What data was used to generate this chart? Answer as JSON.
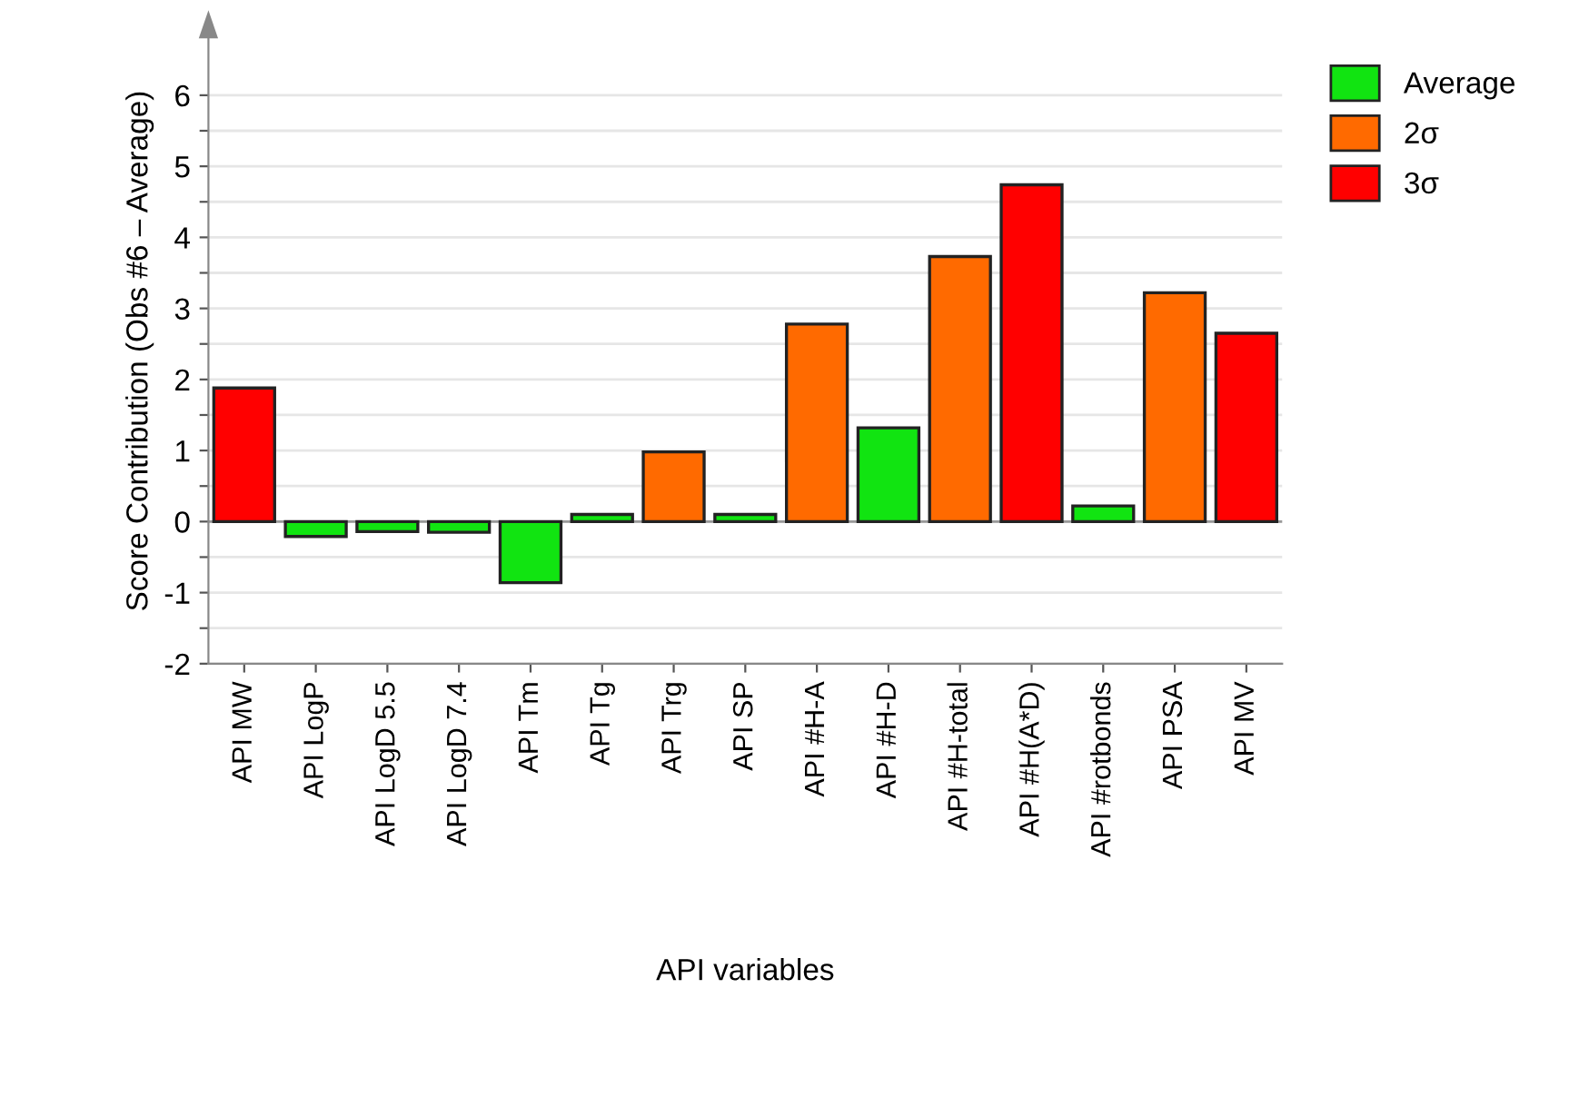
{
  "chart_data": {
    "type": "bar",
    "stacked": true,
    "xlabel": "API variables",
    "ylabel": "Score Contribution (Obs #6 – Average)",
    "categories": [
      "API MW",
      "API LogP",
      "API LogD 5.5",
      "API LogD 7.4",
      "API Tm",
      "API Tg",
      "API Trg",
      "API SP",
      "API #H-A",
      "API #H-D",
      "API #H-total",
      "API #H(A*D)",
      "API #rotbonds",
      "API PSA",
      "API MV"
    ],
    "series": [
      {
        "name": "Average",
        "color": "#11e411",
        "values": [
          null,
          -0.21,
          -0.14,
          -0.15,
          -0.86,
          0.1,
          null,
          0.1,
          null,
          1.32,
          null,
          null,
          0.22,
          null,
          null
        ]
      },
      {
        "name": "2σ",
        "color": "#ff6a00",
        "values": [
          null,
          null,
          null,
          null,
          null,
          null,
          0.98,
          null,
          2.78,
          null,
          3.73,
          null,
          null,
          3.22,
          null
        ]
      },
      {
        "name": "3σ",
        "color": "#ff0000",
        "values": [
          1.88,
          null,
          null,
          null,
          null,
          null,
          null,
          null,
          null,
          null,
          null,
          4.74,
          null,
          null,
          2.65
        ]
      }
    ],
    "ylim": [
      -2,
      6.8
    ],
    "yticks": [
      -2,
      {
        "value": -1.5,
        "label": null
      },
      -1,
      {
        "value": -0.5,
        "label": null
      },
      0,
      {
        "value": 0.5,
        "label": null
      },
      1,
      {
        "value": 1.5,
        "label": null
      },
      2,
      {
        "value": 2.5,
        "label": null
      },
      3,
      {
        "value": 3.5,
        "label": null
      },
      4,
      {
        "value": 4.5,
        "label": null
      },
      5,
      {
        "value": 5.5,
        "label": null
      },
      6
    ],
    "grid": "y",
    "legend": "top right"
  }
}
